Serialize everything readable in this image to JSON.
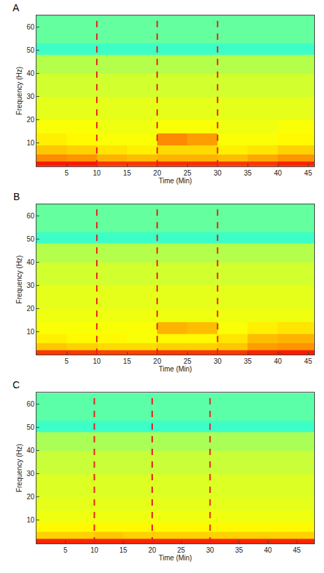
{
  "chart_data": [
    {
      "type": "heatmap",
      "label": "A",
      "x_label": "Time (Min)",
      "y_label": "Frequency (Hz)",
      "xlim": [
        0,
        46
      ],
      "ylim": [
        0,
        65
      ],
      "xticks": [
        5,
        10,
        15,
        20,
        25,
        30,
        35,
        40,
        45
      ],
      "yticks": [
        10,
        20,
        30,
        40,
        50,
        60
      ],
      "event_lines": [
        10,
        20,
        30
      ],
      "zlim": [
        0,
        1
      ],
      "time_edges": [
        0,
        5,
        10,
        15,
        20,
        25,
        30,
        35,
        40,
        46
      ],
      "freq_edges": [
        0,
        2,
        5,
        9,
        14,
        20,
        30,
        40,
        48,
        53,
        65
      ],
      "cells": [
        [
          0.85,
          0.85,
          0.82,
          0.82,
          0.83,
          0.83,
          0.82,
          0.82,
          0.84
        ],
        [
          0.74,
          0.73,
          0.7,
          0.69,
          0.7,
          0.7,
          0.69,
          0.71,
          0.73
        ],
        [
          0.68,
          0.67,
          0.65,
          0.64,
          0.66,
          0.66,
          0.64,
          0.65,
          0.67
        ],
        [
          0.64,
          0.63,
          0.62,
          0.62,
          0.74,
          0.72,
          0.62,
          0.62,
          0.63
        ],
        [
          0.62,
          0.62,
          0.61,
          0.61,
          0.62,
          0.62,
          0.61,
          0.61,
          0.62
        ],
        [
          0.6,
          0.6,
          0.6,
          0.6,
          0.6,
          0.6,
          0.6,
          0.6,
          0.6
        ],
        [
          0.58,
          0.58,
          0.58,
          0.58,
          0.58,
          0.58,
          0.58,
          0.58,
          0.58
        ],
        [
          0.55,
          0.55,
          0.55,
          0.55,
          0.55,
          0.55,
          0.55,
          0.55,
          0.55
        ],
        [
          0.43,
          0.43,
          0.43,
          0.43,
          0.43,
          0.43,
          0.43,
          0.43,
          0.43
        ],
        [
          0.47,
          0.47,
          0.47,
          0.47,
          0.47,
          0.47,
          0.47,
          0.47,
          0.47
        ]
      ]
    },
    {
      "type": "heatmap",
      "label": "B",
      "x_label": "Time (Min)",
      "y_label": "Frequency (Hz)",
      "xlim": [
        0,
        46
      ],
      "ylim": [
        0,
        65
      ],
      "xticks": [
        5,
        10,
        15,
        20,
        25,
        30,
        35,
        40,
        45
      ],
      "yticks": [
        10,
        20,
        30,
        40,
        50,
        60
      ],
      "event_lines": [
        10,
        20,
        30
      ],
      "zlim": [
        0,
        1
      ],
      "time_edges": [
        0,
        5,
        10,
        15,
        20,
        25,
        30,
        35,
        40,
        46
      ],
      "freq_edges": [
        0,
        2,
        5,
        9,
        14,
        20,
        30,
        40,
        48,
        53,
        65
      ],
      "cells": [
        [
          0.82,
          0.82,
          0.81,
          0.81,
          0.82,
          0.82,
          0.82,
          0.84,
          0.85
        ],
        [
          0.68,
          0.67,
          0.66,
          0.66,
          0.67,
          0.67,
          0.68,
          0.72,
          0.73
        ],
        [
          0.64,
          0.63,
          0.63,
          0.62,
          0.63,
          0.63,
          0.65,
          0.69,
          0.7
        ],
        [
          0.62,
          0.62,
          0.62,
          0.62,
          0.7,
          0.69,
          0.62,
          0.64,
          0.65
        ],
        [
          0.61,
          0.61,
          0.61,
          0.61,
          0.61,
          0.61,
          0.61,
          0.61,
          0.61
        ],
        [
          0.6,
          0.6,
          0.6,
          0.6,
          0.6,
          0.6,
          0.6,
          0.6,
          0.6
        ],
        [
          0.58,
          0.58,
          0.58,
          0.58,
          0.58,
          0.58,
          0.58,
          0.58,
          0.58
        ],
        [
          0.55,
          0.55,
          0.55,
          0.55,
          0.55,
          0.55,
          0.55,
          0.55,
          0.55
        ],
        [
          0.43,
          0.43,
          0.43,
          0.43,
          0.43,
          0.43,
          0.43,
          0.43,
          0.43
        ],
        [
          0.47,
          0.47,
          0.47,
          0.47,
          0.47,
          0.47,
          0.47,
          0.47,
          0.47
        ]
      ]
    },
    {
      "type": "heatmap",
      "label": "C",
      "x_label": "Time (Min)",
      "y_label": "Frequency (Hz)",
      "xlim": [
        0,
        48
      ],
      "ylim": [
        0,
        65
      ],
      "xticks": [
        5,
        10,
        15,
        20,
        25,
        30,
        35,
        40,
        45
      ],
      "yticks": [
        10,
        20,
        30,
        40,
        50,
        60
      ],
      "event_lines": [
        10,
        20,
        30
      ],
      "zlim": [
        0,
        1
      ],
      "time_edges": [
        0,
        5,
        10,
        15,
        20,
        25,
        30,
        35,
        40,
        48
      ],
      "freq_edges": [
        0,
        2,
        5,
        9,
        14,
        20,
        30,
        40,
        48,
        53,
        65
      ],
      "cells": [
        [
          0.84,
          0.84,
          0.84,
          0.84,
          0.84,
          0.84,
          0.84,
          0.84,
          0.84
        ],
        [
          0.67,
          0.67,
          0.68,
          0.67,
          0.67,
          0.67,
          0.67,
          0.67,
          0.67
        ],
        [
          0.63,
          0.63,
          0.63,
          0.63,
          0.63,
          0.63,
          0.63,
          0.63,
          0.63
        ],
        [
          0.61,
          0.61,
          0.61,
          0.61,
          0.61,
          0.61,
          0.61,
          0.61,
          0.61
        ],
        [
          0.6,
          0.6,
          0.6,
          0.6,
          0.6,
          0.6,
          0.6,
          0.6,
          0.6
        ],
        [
          0.59,
          0.59,
          0.59,
          0.59,
          0.59,
          0.59,
          0.59,
          0.59,
          0.59
        ],
        [
          0.57,
          0.57,
          0.57,
          0.57,
          0.57,
          0.57,
          0.57,
          0.57,
          0.57
        ],
        [
          0.54,
          0.54,
          0.54,
          0.54,
          0.54,
          0.54,
          0.54,
          0.54,
          0.54
        ],
        [
          0.43,
          0.43,
          0.43,
          0.43,
          0.43,
          0.43,
          0.43,
          0.43,
          0.43
        ],
        [
          0.46,
          0.46,
          0.46,
          0.46,
          0.46,
          0.46,
          0.46,
          0.46,
          0.46
        ]
      ]
    }
  ]
}
